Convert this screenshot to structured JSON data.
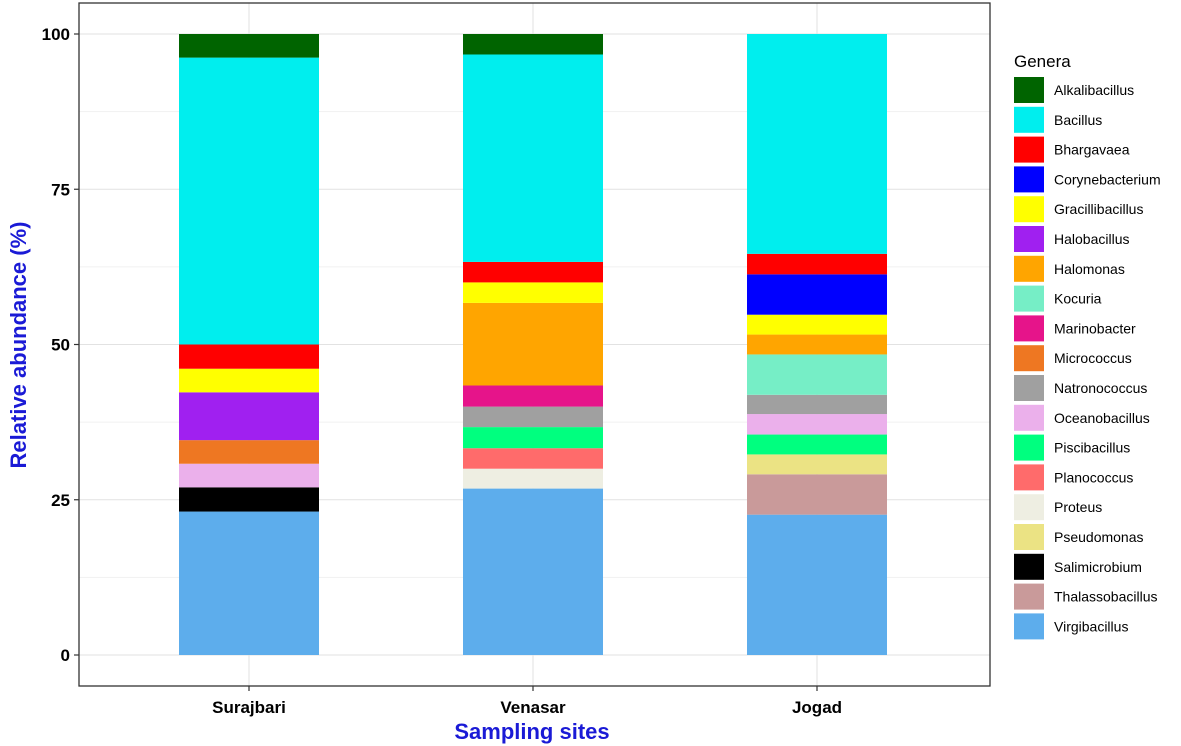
{
  "chart_data": {
    "type": "bar",
    "stacked": true,
    "xlabel": "Sampling sites",
    "ylabel": "Relative abundance (%)",
    "categories": [
      "Surajbari",
      "Venasar",
      "Jogad"
    ],
    "ylim": [
      0,
      100
    ],
    "yticks": [
      "0",
      "25",
      "50",
      "75",
      "100"
    ],
    "grid": true,
    "legend": {
      "title": "Genera",
      "position": "right"
    },
    "series": [
      {
        "name": "Virgibacillus",
        "color": "#5DADEC",
        "values": [
          23.1,
          26.8,
          22.6
        ]
      },
      {
        "name": "Thalassobacillus",
        "color": "#C99A9A",
        "values": [
          0,
          0,
          6.5
        ]
      },
      {
        "name": "Salimicrobium",
        "color": "#000000",
        "values": [
          3.9,
          0,
          0
        ]
      },
      {
        "name": "Pseudomonas",
        "color": "#EBE384",
        "values": [
          0,
          0,
          3.2
        ]
      },
      {
        "name": "Proteus",
        "color": "#EEEEE2",
        "values": [
          0,
          3.2,
          0
        ]
      },
      {
        "name": "Planococcus",
        "color": "#FF6B6B",
        "values": [
          0,
          3.3,
          0
        ]
      },
      {
        "name": "Piscibacillus",
        "color": "#00FF7F",
        "values": [
          0,
          3.4,
          3.2
        ]
      },
      {
        "name": "Oceanobacillus",
        "color": "#EBB0EB",
        "values": [
          3.8,
          0,
          3.3
        ]
      },
      {
        "name": "Natronococcus",
        "color": "#A0A0A0",
        "values": [
          0,
          3.3,
          3.1
        ]
      },
      {
        "name": "Micrococcus",
        "color": "#EE7722",
        "values": [
          3.8,
          0,
          0
        ]
      },
      {
        "name": "Marinobacter",
        "color": "#E6148A",
        "values": [
          0,
          3.4,
          0
        ]
      },
      {
        "name": "Kocuria",
        "color": "#76EEC6",
        "values": [
          0,
          0,
          6.5
        ]
      },
      {
        "name": "Halomonas",
        "color": "#FFA500",
        "values": [
          0,
          13.3,
          3.2
        ]
      },
      {
        "name": "Halobacillus",
        "color": "#A020F0",
        "values": [
          7.7,
          0,
          0
        ]
      },
      {
        "name": "Gracillibacillus",
        "color": "#FFFF00",
        "values": [
          3.8,
          3.3,
          3.2
        ]
      },
      {
        "name": "Corynebacterium",
        "color": "#0000FF",
        "values": [
          0,
          0,
          6.5
        ]
      },
      {
        "name": "Bhargavaea",
        "color": "#FF0000",
        "values": [
          3.9,
          3.3,
          3.3
        ]
      },
      {
        "name": "Bacillus",
        "color": "#00EEEE",
        "values": [
          46.2,
          33.4,
          35.4
        ]
      },
      {
        "name": "Alkalibacillus",
        "color": "#006400",
        "values": [
          3.8,
          3.3,
          0
        ]
      }
    ]
  }
}
